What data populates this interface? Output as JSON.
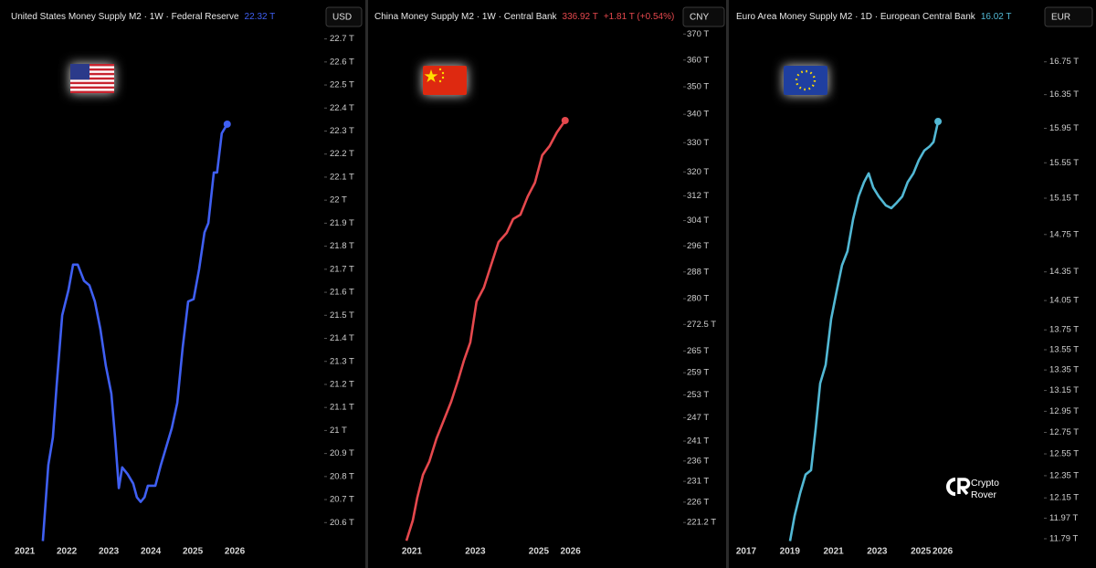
{
  "chart_data": [
    {
      "type": "line",
      "title": "United States Money Supply M2 · 1W · Federal Reserve",
      "last_label": "22.32 T",
      "currency": "USD",
      "log_scale": false,
      "grid": false,
      "x": [
        2021.43,
        2021.56,
        2021.67,
        2021.76,
        2021.89,
        2022.04,
        2022.15,
        2022.26,
        2022.41,
        2022.54,
        2022.67,
        2022.8,
        2022.93,
        2023.06,
        2023.15,
        2023.24,
        2023.32,
        2023.45,
        2023.58,
        2023.67,
        2023.76,
        2023.85,
        2023.93,
        2024.11,
        2024.24,
        2024.37,
        2024.5,
        2024.63,
        2024.76,
        2024.89,
        2025.02,
        2025.15,
        2025.28,
        2025.37,
        2025.5,
        2025.58,
        2025.69,
        2025.82
      ],
      "series": [
        {
          "color": "#3f5ff2",
          "values": [
            20.52,
            20.85,
            20.97,
            21.2,
            21.5,
            21.61,
            21.72,
            21.72,
            21.65,
            21.63,
            21.56,
            21.44,
            21.28,
            21.16,
            20.97,
            20.75,
            20.84,
            20.81,
            20.77,
            20.71,
            20.69,
            20.71,
            20.76,
            20.76,
            20.85,
            20.93,
            21.01,
            21.12,
            21.36,
            21.56,
            21.57,
            21.7,
            21.86,
            21.9,
            22.12,
            22.12,
            22.29,
            22.33
          ]
        }
      ],
      "xlim": [
        2020.41,
        2028.13
      ],
      "ylim": [
        20.51,
        22.75
      ],
      "xticks": [
        2021,
        2022,
        2023,
        2024,
        2025,
        2026
      ],
      "yticks": [
        {
          "value": 22.7,
          "label": "22.7 T"
        },
        {
          "value": 22.6,
          "label": "22.6 T"
        },
        {
          "value": 22.5,
          "label": "22.5 T"
        },
        {
          "value": 22.4,
          "label": "22.4 T"
        },
        {
          "value": 22.3,
          "label": "22.3 T"
        },
        {
          "value": 22.2,
          "label": "22.2 T"
        },
        {
          "value": 22.1,
          "label": "22.1 T"
        },
        {
          "value": 22,
          "label": "22 T"
        },
        {
          "value": 21.9,
          "label": "21.9 T"
        },
        {
          "value": 21.8,
          "label": "21.8 T"
        },
        {
          "value": 21.7,
          "label": "21.7 T"
        },
        {
          "value": 21.6,
          "label": "21.6 T"
        },
        {
          "value": 21.5,
          "label": "21.5 T"
        },
        {
          "value": 21.4,
          "label": "21.4 T"
        },
        {
          "value": 21.3,
          "label": "21.3 T"
        },
        {
          "value": 21.2,
          "label": "21.2 T"
        },
        {
          "value": 21.1,
          "label": "21.1 T"
        },
        {
          "value": 21,
          "label": "21 T"
        },
        {
          "value": 20.9,
          "label": "20.9 T"
        },
        {
          "value": 20.8,
          "label": "20.8 T"
        },
        {
          "value": 20.7,
          "label": "20.7 T"
        },
        {
          "value": 20.6,
          "label": "20.6 T"
        }
      ]
    },
    {
      "type": "line",
      "title": "China Money Supply M2 · 1W · Central Bank",
      "last_label": "336.92 T",
      "change_label": "+1.81 T (+0.54%)",
      "currency": "CNY",
      "log_scale": true,
      "grid": false,
      "x": [
        2020.83,
        2021.03,
        2021.17,
        2021.35,
        2021.55,
        2021.78,
        2022.01,
        2022.24,
        2022.47,
        2022.64,
        2022.84,
        2023.04,
        2023.27,
        2023.5,
        2023.73,
        2023.99,
        2024.19,
        2024.42,
        2024.65,
        2024.88,
        2025.11,
        2025.34,
        2025.57,
        2025.83
      ],
      "series": [
        {
          "color": "#e5484d",
          "values": [
            217.0,
            221.7,
            227.1,
            232.6,
            235.9,
            241.7,
            246.4,
            251.2,
            257.3,
            262.3,
            267.4,
            279.2,
            283.3,
            290.2,
            297.2,
            300.1,
            304.5,
            305.9,
            311.8,
            316.4,
            325.7,
            328.8,
            333.6,
            337.8
          ]
        }
      ],
      "xlim": [
        2019.62,
        2029.55
      ],
      "ylim": [
        216.4,
        372.6
      ],
      "xticks": [
        2021,
        2023,
        2025,
        2026
      ],
      "yticks": [
        {
          "value": 370,
          "label": "370 T"
        },
        {
          "value": 360,
          "label": "360 T"
        },
        {
          "value": 350,
          "label": "350 T"
        },
        {
          "value": 340,
          "label": "340 T"
        },
        {
          "value": 330,
          "label": "330 T"
        },
        {
          "value": 320,
          "label": "320 T"
        },
        {
          "value": 312,
          "label": "312 T"
        },
        {
          "value": 304,
          "label": "304 T"
        },
        {
          "value": 296,
          "label": "296 T"
        },
        {
          "value": 288,
          "label": "288 T"
        },
        {
          "value": 280,
          "label": "280 T"
        },
        {
          "value": 272.5,
          "label": "272.5 T"
        },
        {
          "value": 265,
          "label": "265 T"
        },
        {
          "value": 259,
          "label": "259 T"
        },
        {
          "value": 253,
          "label": "253 T"
        },
        {
          "value": 247,
          "label": "247 T"
        },
        {
          "value": 241,
          "label": "241 T"
        },
        {
          "value": 236,
          "label": "236 T"
        },
        {
          "value": 231,
          "label": "231 T"
        },
        {
          "value": 226,
          "label": "226 T"
        },
        {
          "value": 221.2,
          "label": "221.2 T"
        }
      ]
    },
    {
      "type": "line",
      "title": "Euro Area Money Supply M2 · 1D · European Central Bank",
      "last_label": "16.02 T",
      "currency": "EUR",
      "log_scale": true,
      "grid": false,
      "x": [
        2019.01,
        2019.22,
        2019.47,
        2019.72,
        2019.97,
        2020.18,
        2020.39,
        2020.64,
        2020.89,
        2021.14,
        2021.39,
        2021.64,
        2021.9,
        2022.15,
        2022.4,
        2022.61,
        2022.82,
        2023.07,
        2023.4,
        2023.65,
        2023.9,
        2024.15,
        2024.4,
        2024.66,
        2024.91,
        2025.16,
        2025.41,
        2025.58,
        2025.79
      ],
      "series": [
        {
          "color": "#52b8d4",
          "values": [
            11.77,
            11.99,
            12.19,
            12.36,
            12.4,
            12.78,
            13.22,
            13.4,
            13.86,
            14.14,
            14.42,
            14.57,
            14.92,
            15.17,
            15.33,
            15.43,
            15.27,
            15.17,
            15.07,
            15.04,
            15.1,
            15.17,
            15.33,
            15.43,
            15.58,
            15.69,
            15.74,
            15.79,
            16.03
          ]
        }
      ],
      "xlim": [
        2016.29,
        2030.64
      ],
      "ylim": [
        11.75,
        17.18
      ],
      "xticks": [
        2017,
        2019,
        2021,
        2023,
        2025,
        2026
      ],
      "yticks": [
        {
          "value": 16.75,
          "label": "16.75 T"
        },
        {
          "value": 16.35,
          "label": "16.35 T"
        },
        {
          "value": 15.95,
          "label": "15.95 T"
        },
        {
          "value": 15.55,
          "label": "15.55 T"
        },
        {
          "value": 15.15,
          "label": "15.15 T"
        },
        {
          "value": 14.75,
          "label": "14.75 T"
        },
        {
          "value": 14.35,
          "label": "14.35 T"
        },
        {
          "value": 14.05,
          "label": "14.05 T"
        },
        {
          "value": 13.75,
          "label": "13.75 T"
        },
        {
          "value": 13.55,
          "label": "13.55 T"
        },
        {
          "value": 13.35,
          "label": "13.35 T"
        },
        {
          "value": 13.15,
          "label": "13.15 T"
        },
        {
          "value": 12.95,
          "label": "12.95 T"
        },
        {
          "value": 12.75,
          "label": "12.75 T"
        },
        {
          "value": 12.55,
          "label": "12.55 T"
        },
        {
          "value": 12.35,
          "label": "12.35 T"
        },
        {
          "value": 12.15,
          "label": "12.15 T"
        },
        {
          "value": 11.97,
          "label": "11.97 T"
        },
        {
          "value": 11.79,
          "label": "11.79 T"
        }
      ]
    }
  ],
  "watermark": {
    "line1": "Crypto",
    "line2": "Rover"
  }
}
